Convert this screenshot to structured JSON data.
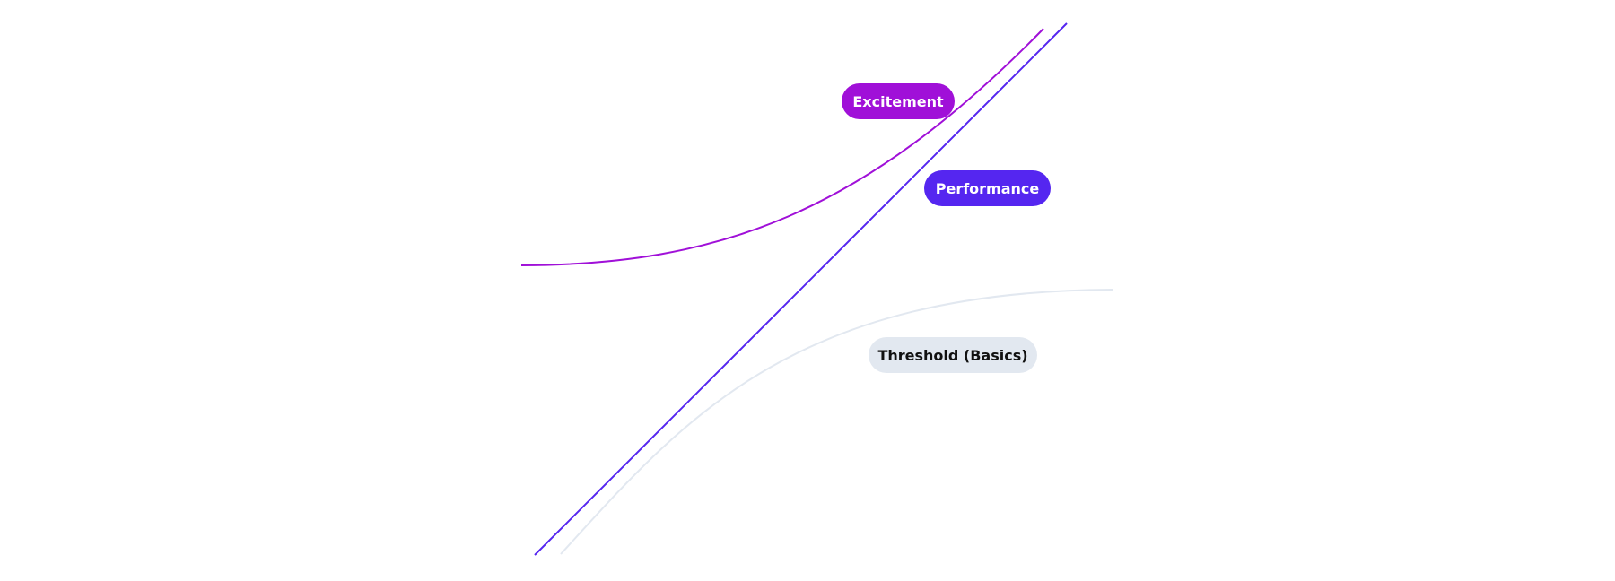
{
  "diagram": {
    "curves": [
      {
        "id": "excitement",
        "label": "Excitement",
        "color": "#a010d8",
        "label_text_color": "#ffffff"
      },
      {
        "id": "performance",
        "label": "Performance",
        "color": "#5526f0",
        "label_text_color": "#ffffff"
      },
      {
        "id": "threshold",
        "label": "Threshold (Basics)",
        "color": "#e2e8f0",
        "label_text_color": "#111111"
      }
    ]
  }
}
